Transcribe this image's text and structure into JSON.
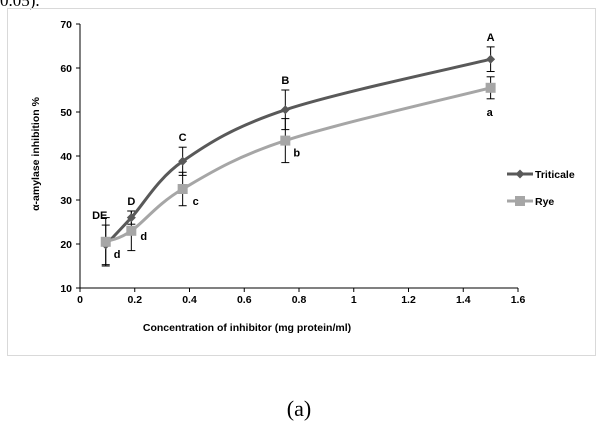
{
  "top_fragment": "0.05).",
  "caption": "(a)",
  "chart_data": {
    "type": "line",
    "xlabel": "Concentration of inhibitor (mg protein/ml)",
    "ylabel": "α-amylase inhibition %",
    "xlim": [
      0,
      1.6
    ],
    "ylim": [
      10,
      70
    ],
    "x_ticks": [
      "0",
      "0.2",
      "0.4",
      "0.6",
      "0.8",
      "1",
      "1.2",
      "1.4",
      "1.6"
    ],
    "y_ticks": [
      "10",
      "20",
      "30",
      "40",
      "50",
      "60",
      "70"
    ],
    "x_tick_values": [
      0,
      0.2,
      0.4,
      0.6,
      0.8,
      1.0,
      1.2,
      1.4,
      1.6
    ],
    "y_tick_values": [
      10,
      20,
      30,
      40,
      50,
      60,
      70
    ],
    "grid": false,
    "legend_position": "right",
    "series": [
      {
        "name": "Triticale",
        "color": "#595959",
        "marker": "diamond",
        "x": [
          0.094,
          0.1875,
          0.375,
          0.75,
          1.5
        ],
        "y": [
          19.8,
          26.0,
          38.8,
          50.5,
          62.0
        ],
        "error": [
          4.5,
          1.5,
          3.2,
          4.5,
          2.8
        ],
        "labels": [
          "DE",
          "D",
          "C",
          "B",
          "A"
        ]
      },
      {
        "name": "Rye",
        "color": "#a6a6a6",
        "marker": "square",
        "x": [
          0.094,
          0.1875,
          0.375,
          0.75,
          1.5
        ],
        "y": [
          20.5,
          23.0,
          32.5,
          43.5,
          55.5
        ],
        "error": [
          5.5,
          4.5,
          3.8,
          5.0,
          2.5
        ],
        "labels": [
          "d",
          "d",
          "c",
          "b",
          "a"
        ]
      }
    ]
  }
}
